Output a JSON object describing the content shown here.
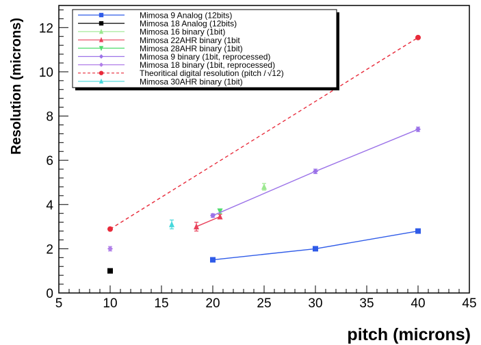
{
  "chart_data": {
    "type": "scatter",
    "xlabel": "pitch (microns)",
    "ylabel": "Resolution (microns)",
    "xlim": [
      5,
      45
    ],
    "ylim": [
      0,
      13
    ],
    "x_ticks": [
      "5",
      "10",
      "15",
      "20",
      "25",
      "30",
      "35",
      "40",
      "45"
    ],
    "y_ticks": [
      "0",
      "2",
      "4",
      "6",
      "8",
      "10",
      "12"
    ],
    "grid": false,
    "legend_position": "top-left",
    "series": [
      {
        "name": "Mimosa  9 Analog (12bits)",
        "color": "#2f5be8",
        "marker": "square",
        "line": "solid",
        "x": [
          20,
          30,
          40
        ],
        "y": [
          1.5,
          2.0,
          2.8
        ]
      },
      {
        "name": "Mimosa 18 Analog (12bits)",
        "color": "#000000",
        "marker": "square",
        "line": "none",
        "x": [
          10
        ],
        "y": [
          1.0
        ]
      },
      {
        "name": "Mimosa 16 binary (1bit)",
        "color": "#9be88f",
        "marker": "triangle-up",
        "line": "none",
        "x": [
          25
        ],
        "y": [
          4.8
        ],
        "err": [
          0.15
        ]
      },
      {
        "name": "Mimosa 22AHR binary (1bit",
        "color": "#e8405a",
        "marker": "triangle-up",
        "line": "solid",
        "x": [
          18.4,
          20.7
        ],
        "y": [
          3.0,
          3.45
        ],
        "err": [
          0.2,
          0.1
        ]
      },
      {
        "name": "Mimosa 28AHR binary (1bit)",
        "color": "#4fdc6e",
        "marker": "triangle-down",
        "line": "none",
        "x": [
          20.7
        ],
        "y": [
          3.7
        ],
        "err": [
          0.1
        ]
      },
      {
        "name": "Mimosa 9 binary (1bit, reprocessed)",
        "color": "#9b72e8",
        "marker": "diamond",
        "line": "solid",
        "x": [
          20,
          30,
          40
        ],
        "y": [
          3.5,
          5.5,
          7.4
        ],
        "err": [
          0.08,
          0.1,
          0.1
        ]
      },
      {
        "name": "Mimosa 18 binary (1bit, reprocessed)",
        "color": "#b07ee8",
        "marker": "diamond",
        "line": "none",
        "x": [
          10
        ],
        "y": [
          2.0
        ],
        "err": [
          0.1
        ]
      },
      {
        "name": "Theoritical digital resolution (pitch /",
        "color": "#e82a3a",
        "marker": "circle",
        "line": "dashed",
        "x": [
          10,
          40
        ],
        "y": [
          2.89,
          11.55
        ]
      },
      {
        "name": "Mimosa 30AHR binary (1bit)",
        "color": "#46d8dc",
        "marker": "triangle-up",
        "line": "none",
        "x": [
          16
        ],
        "y": [
          3.1
        ],
        "err": [
          0.2
        ]
      }
    ],
    "legend_formula": "√12)"
  }
}
